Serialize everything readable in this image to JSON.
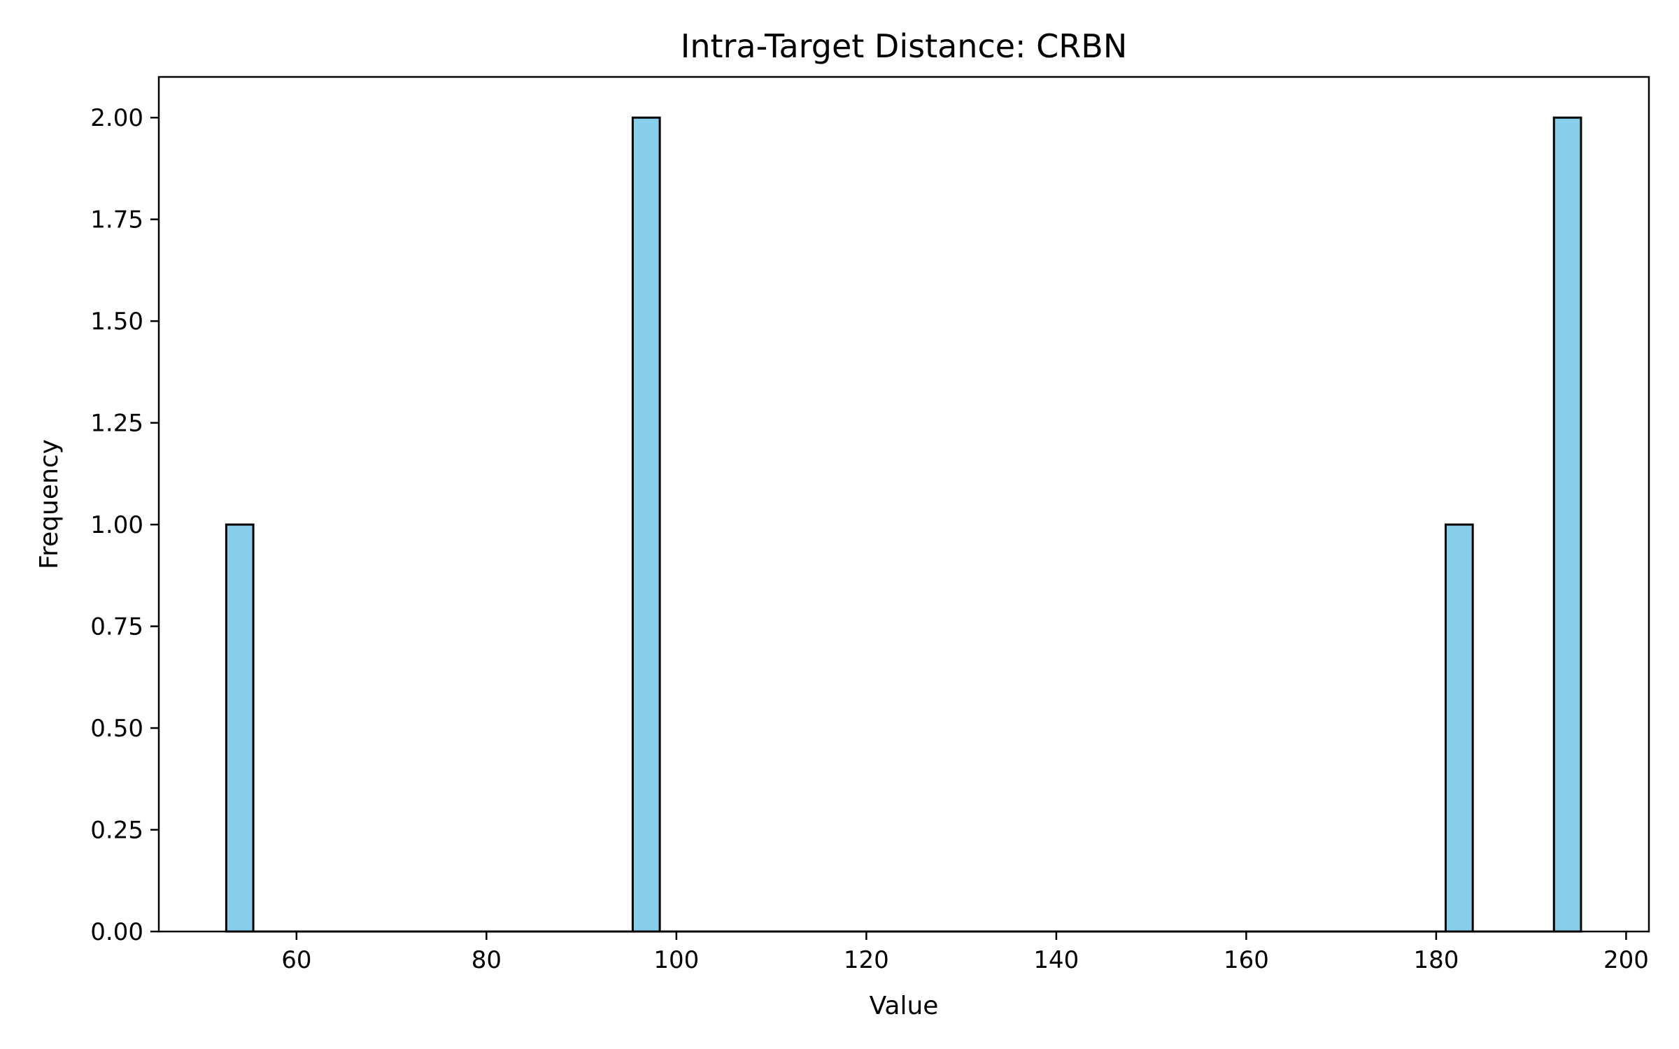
{
  "chart_data": {
    "type": "bar",
    "title": "Intra-Target Distance: CRBN",
    "xlabel": "Value",
    "ylabel": "Frequency",
    "xlim": [
      45.5,
      202.4
    ],
    "ylim": [
      0,
      2.1
    ],
    "x_ticks": [
      60,
      80,
      100,
      120,
      140,
      160,
      180,
      200
    ],
    "x_tick_labels": [
      "60",
      "80",
      "100",
      "120",
      "140",
      "160",
      "180",
      "200"
    ],
    "y_ticks": [
      0,
      0.25,
      0.5,
      0.75,
      1.0,
      1.25,
      1.5,
      1.75,
      2.0
    ],
    "y_tick_labels": [
      "0.00",
      "0.25",
      "0.50",
      "0.75",
      "1.00",
      "1.25",
      "1.50",
      "1.75",
      "2.00"
    ],
    "bin_width": 2.85,
    "bins": [
      {
        "start": 52.6,
        "end": 55.45,
        "count": 1
      },
      {
        "start": 95.4,
        "end": 98.25,
        "count": 2
      },
      {
        "start": 181.0,
        "end": 183.85,
        "count": 1
      },
      {
        "start": 192.4,
        "end": 195.25,
        "count": 2
      }
    ],
    "bar_color": "#87CEEB",
    "edge_color": "#000000",
    "grid": false,
    "legend": "none"
  }
}
